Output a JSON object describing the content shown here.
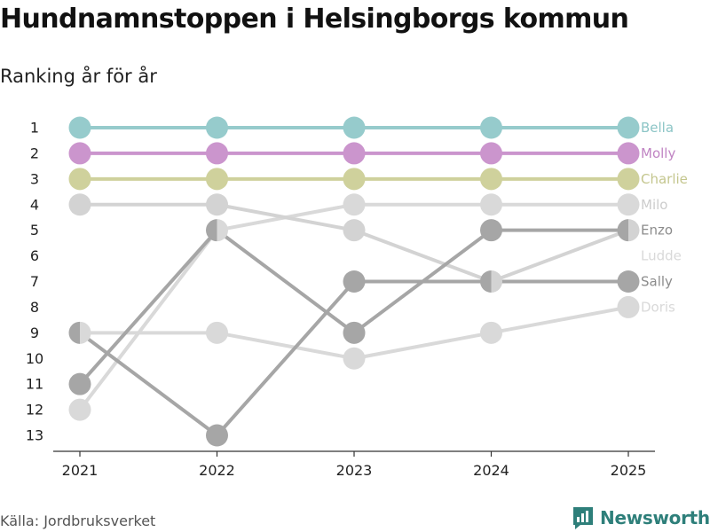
{
  "header": {
    "title": "Hundnamnstoppen i Helsingborgs kommun",
    "subtitle": "Ranking år för år"
  },
  "footer": {
    "source": "Källa: Jordbruksverket",
    "brand": "Newsworthy"
  },
  "icons": {
    "logo": "bar-chart-logo-icon"
  },
  "colors": {
    "brand": "#2e7f7a"
  },
  "chart_data": {
    "type": "line",
    "title": "Hundnamnstoppen i Helsingborgs kommun",
    "subtitle": "Ranking år för år",
    "x": [
      "2021",
      "2022",
      "2023",
      "2024",
      "2025"
    ],
    "ylim": [
      1,
      13
    ],
    "y_reversed": true,
    "y_ticks": [
      1,
      2,
      3,
      4,
      5,
      6,
      7,
      8,
      9,
      10,
      11,
      12,
      13
    ],
    "grid": false,
    "legend": "right-end labels",
    "series": [
      {
        "name": "Doris",
        "values": [
          9,
          9,
          10,
          9,
          8
        ],
        "color": "#d9d9d9",
        "label_color": "#d9d9d9"
      },
      {
        "name": "Ludde",
        "values": [
          12,
          5,
          4,
          4,
          4
        ],
        "color": "#d9d9d9",
        "label_color": "#d9d9d9"
      },
      {
        "name": "Milo",
        "values": [
          4,
          4,
          5,
          7,
          5
        ],
        "color": "#d3d3d3",
        "label_color": "#cccccc"
      },
      {
        "name": "Enzo",
        "values": [
          11,
          5,
          9,
          5,
          5
        ],
        "color": "#a6a6a6",
        "label_color": "#8c8c8c"
      },
      {
        "name": "Sally",
        "values": [
          9,
          13,
          7,
          7,
          7
        ],
        "color": "#a6a6a6",
        "label_color": "#8c8c8c"
      },
      {
        "name": "Charlie",
        "values": [
          3,
          3,
          3,
          3,
          3
        ],
        "color": "#cfd19c",
        "label_color": "#c4c68e"
      },
      {
        "name": "Molly",
        "values": [
          2,
          2,
          2,
          2,
          2
        ],
        "color": "#cb95cd",
        "label_color": "#c084c3"
      },
      {
        "name": "Bella",
        "values": [
          1,
          1,
          1,
          1,
          1
        ],
        "color": "#96cbcc",
        "label_color": "#8cc5c6"
      }
    ],
    "end_labels": [
      {
        "text": "Bella",
        "rank": 1
      },
      {
        "text": "Molly",
        "rank": 2
      },
      {
        "text": "Charlie",
        "rank": 3
      },
      {
        "text": "Milo",
        "rank": 4
      },
      {
        "text": "Enzo",
        "rank": 5
      },
      {
        "text": "Ludde",
        "rank": 6
      },
      {
        "text": "Sally",
        "rank": 7
      },
      {
        "text": "Doris",
        "rank": 8
      }
    ]
  }
}
